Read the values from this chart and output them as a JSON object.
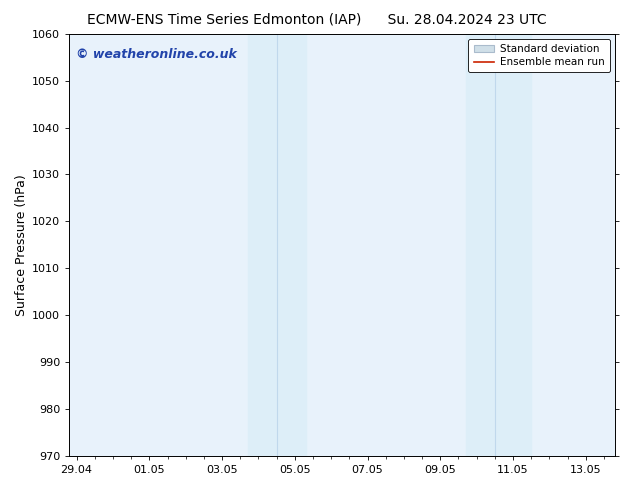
{
  "title_left": "ECMW-ENS Time Series Edmonton (IAP)",
  "title_right": "Su. 28.04.2024 23 UTC",
  "ylabel": "Surface Pressure (hPa)",
  "ylim": [
    970,
    1060
  ],
  "yticks": [
    970,
    980,
    990,
    1000,
    1010,
    1020,
    1030,
    1040,
    1050,
    1060
  ],
  "xtick_labels": [
    "29.04",
    "01.05",
    "03.05",
    "05.05",
    "07.05",
    "09.05",
    "11.05",
    "13.05"
  ],
  "xtick_positions": [
    0,
    2,
    4,
    6,
    8,
    10,
    12,
    14
  ],
  "xmin": -0.2,
  "xmax": 14.8,
  "shaded_band1_x0": 4.7,
  "shaded_band1_xmid": 5.5,
  "shaded_band1_x1": 6.3,
  "shaded_band2_x0": 10.7,
  "shaded_band2_xmid": 11.5,
  "shaded_band2_x1": 12.5,
  "band_color": "#ddeef8",
  "band_divider_color": "#c0d8ec",
  "plot_bg_color": "#e8f2fb",
  "watermark_text": "© weatheronline.co.uk",
  "watermark_color": "#2244aa",
  "legend_std_label": "Standard deviation",
  "legend_mean_label": "Ensemble mean run",
  "legend_std_facecolor": "#d0dfe8",
  "legend_std_edgecolor": "#aabbcc",
  "legend_mean_color": "#cc2200",
  "background_color": "#ffffff",
  "title_fontsize": 10,
  "axis_fontsize": 8,
  "watermark_fontsize": 9
}
